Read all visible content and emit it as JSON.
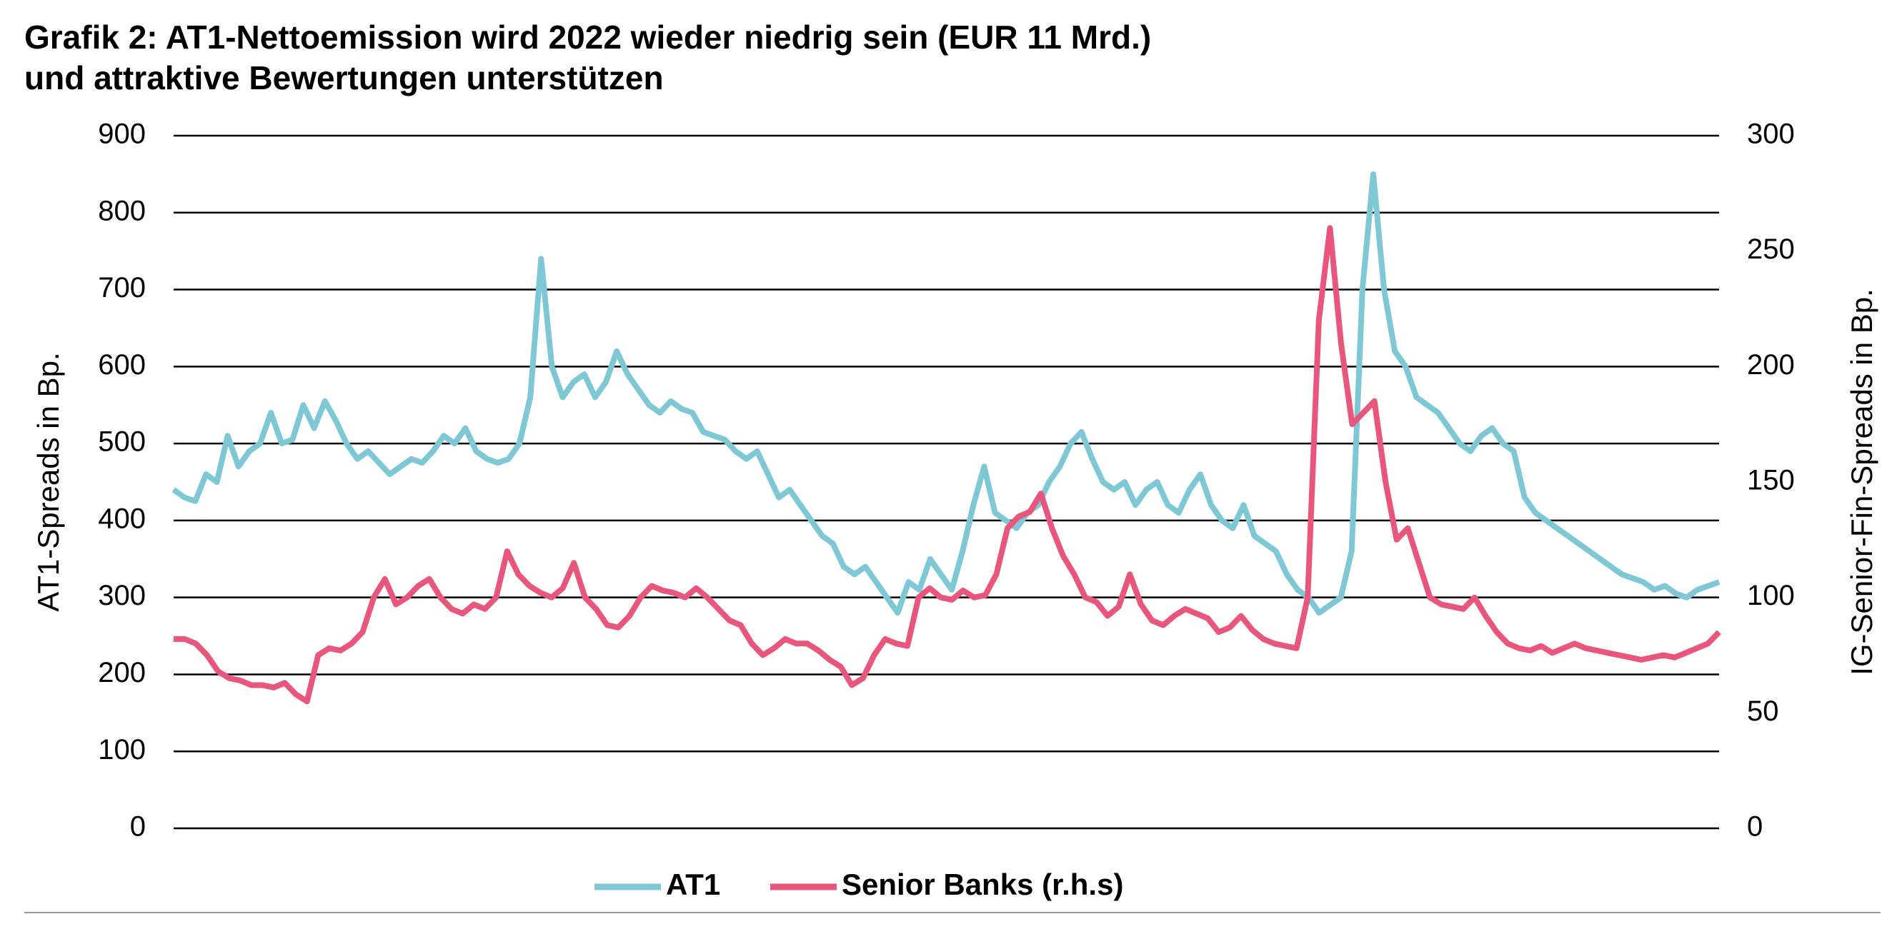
{
  "chart_data": {
    "type": "line",
    "title": "Grafik 2: AT1-Nettoemission wird 2022 wieder niedrig sein (EUR 11 Mrd.)",
    "subtitle": "und attraktive Bewertungen unterstützen",
    "y_label": "AT1-Spreads in Bp.",
    "y2_label": "IG-Senior-Fin-Spreads in Bp.",
    "ylim": [
      0,
      900
    ],
    "yticks": [
      0,
      100,
      200,
      300,
      400,
      500,
      600,
      700,
      800,
      900
    ],
    "y2lim": [
      0,
      300
    ],
    "y2ticks": [
      0,
      50,
      100,
      150,
      200,
      250,
      300
    ],
    "grid": true,
    "legend": "bottom",
    "series": [
      {
        "name": "AT1",
        "color": "#7ec8d6",
        "values": [
          440,
          430,
          425,
          460,
          450,
          510,
          470,
          490,
          500,
          540,
          500,
          505,
          550,
          520,
          555,
          530,
          500,
          480,
          490,
          475,
          460,
          470,
          480,
          475,
          490,
          510,
          500,
          520,
          490,
          480,
          475,
          480,
          500,
          560,
          740,
          600,
          560,
          580,
          590,
          560,
          580,
          620,
          590,
          570,
          550,
          540,
          555,
          545,
          540,
          515,
          510,
          505,
          490,
          480,
          490,
          460,
          430,
          440,
          420,
          400,
          380,
          370,
          340,
          330,
          340,
          320,
          300,
          280,
          320,
          310,
          350,
          330,
          310,
          360,
          420,
          470,
          410,
          400,
          390,
          410,
          420,
          450,
          470,
          500,
          515,
          480,
          450,
          440,
          450,
          420,
          440,
          450,
          420,
          410,
          440,
          460,
          420,
          400,
          390,
          420,
          380,
          370,
          360,
          330,
          310,
          300,
          280,
          290,
          300,
          360,
          700,
          850,
          700,
          620,
          600,
          560,
          550,
          540,
          520,
          500,
          490,
          510,
          520,
          500,
          490,
          430,
          410,
          400,
          390,
          380,
          370,
          360,
          350,
          340,
          330,
          325,
          320,
          310,
          315,
          305,
          300,
          310,
          315,
          320
        ]
      },
      {
        "name": "Senior Banks (r.h.s)",
        "color": "#e9567b",
        "axis": "y2",
        "values": [
          82,
          82,
          80,
          75,
          68,
          65,
          64,
          62,
          62,
          61,
          63,
          58,
          55,
          75,
          78,
          77,
          80,
          85,
          100,
          108,
          97,
          100,
          105,
          108,
          100,
          95,
          93,
          97,
          95,
          100,
          120,
          110,
          105,
          102,
          100,
          104,
          115,
          100,
          95,
          88,
          87,
          92,
          100,
          105,
          103,
          102,
          100,
          104,
          100,
          95,
          90,
          88,
          80,
          75,
          78,
          82,
          80,
          80,
          77,
          73,
          70,
          62,
          65,
          75,
          82,
          80,
          79,
          100,
          104,
          100,
          99,
          103,
          100,
          101,
          110,
          130,
          135,
          137,
          145,
          130,
          118,
          110,
          100,
          98,
          92,
          96,
          110,
          97,
          90,
          88,
          92,
          95,
          93,
          91,
          85,
          87,
          92,
          86,
          82,
          80,
          79,
          78,
          100,
          220,
          260,
          210,
          175,
          180,
          185,
          150,
          125,
          130,
          115,
          100,
          97,
          96,
          95,
          100,
          92,
          85,
          80,
          78,
          77,
          79,
          76,
          78,
          80,
          78,
          77,
          76,
          75,
          74,
          73,
          74,
          75,
          74,
          76,
          78,
          80,
          85
        ]
      }
    ]
  }
}
